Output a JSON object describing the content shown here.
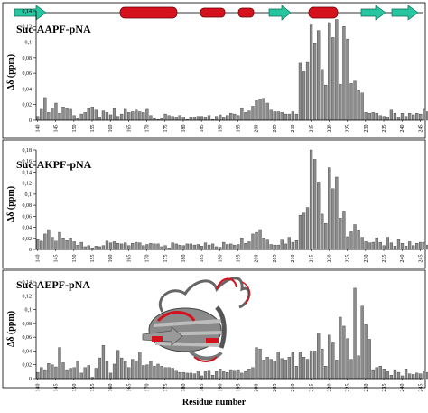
{
  "chart_data": [
    {
      "type": "bar",
      "title": "Suc-AAPF-pNA",
      "ylabel": "Δδ (ppm)",
      "xlabel": "",
      "ylim": [
        0,
        0.14
      ],
      "yticks": [
        "0",
        "0,02",
        "0,04",
        "0,06",
        "0,08",
        "0,1",
        "0,12",
        "0,14"
      ],
      "xlim": [
        140,
        245
      ],
      "xticks": [
        140,
        145,
        150,
        155,
        160,
        165,
        170,
        175,
        180,
        185,
        190,
        195,
        200,
        205,
        210,
        215,
        220,
        225,
        230,
        235,
        240,
        245
      ],
      "series": [
        {
          "x_start": 140,
          "values": [
            0.005,
            0.014,
            0.029,
            0.01,
            0.016,
            0.022,
            0.009,
            0.017,
            0.015,
            0.014,
            0.006,
            0.002,
            0.008,
            0.01,
            0.015,
            0.017,
            0.013,
            0.003,
            0.012,
            0.01,
            0.007,
            0.015,
            0.005,
            0.008,
            0.014,
            0.01,
            0.011,
            0.013,
            0.011,
            0.01,
            0.014,
            0.006,
            0.002,
            0.001,
            0.002,
            0.008,
            0.006,
            0.005,
            0.004,
            0.006,
            0.004,
            0.001,
            0.003,
            0.004,
            0.005,
            0.005,
            0.004,
            0.006,
            0.001,
            0.005,
            0.007,
            0.003,
            0.006,
            0.009,
            0.008,
            0.006,
            0.015,
            0.01,
            0.012,
            0.018,
            0.025,
            0.027,
            0.028,
            0.022,
            0.013,
            0.011,
            0.011,
            0.01,
            0.008,
            0.008,
            0.011,
            0.008,
            0.073,
            0.062,
            0.074,
            0.122,
            0.098,
            0.115,
            0.065,
            0.045,
            0.125,
            0.106,
            0.129,
            0.046,
            0.12,
            0.104,
            0.047,
            0.05,
            0.038,
            0.035,
            0.01,
            0.009,
            0.01,
            0.009,
            0.006,
            0.005,
            0.004,
            0.013,
            0.009,
            0.004,
            0.009,
            0.005,
            0.009,
            0.007,
            0.009,
            0.008,
            0.014,
            0.011,
            0.01,
            0.006,
            0.012,
            0.008,
            0.01,
            0.007,
            0.008,
            0.007,
            0.012,
            0.006,
            0.011,
            0.007,
            0.01,
            0.006,
            0.008,
            0.01,
            0.005,
            0.007,
            0.094,
            0.072,
            0.013,
            0.01,
            0.028,
            0.02,
            0.015,
            0.02,
            0.012,
            0.024,
            0.018,
            0.016,
            0.018,
            0.01,
            0.012,
            0.02
          ]
        }
      ]
    },
    {
      "type": "bar",
      "title": "Suc-AKPF-pNA",
      "ylabel": "Δδ (ppm)",
      "xlabel": "",
      "ylim": [
        0,
        0.18
      ],
      "yticks": [
        "0",
        "0,02",
        "0,04",
        "0,06",
        "0,08",
        "0,1",
        "0,12",
        "0,14",
        "0,16",
        "0,18"
      ],
      "xlim": [
        140,
        245
      ],
      "xticks": [
        140,
        145,
        150,
        155,
        160,
        165,
        170,
        175,
        180,
        185,
        190,
        195,
        200,
        205,
        210,
        215,
        220,
        225,
        230,
        235,
        240,
        245
      ],
      "series": [
        {
          "x_start": 140,
          "values": [
            0.018,
            0.015,
            0.028,
            0.036,
            0.022,
            0.015,
            0.031,
            0.021,
            0.016,
            0.021,
            0.014,
            0.008,
            0.013,
            0.005,
            0.007,
            0.003,
            0.006,
            0.005,
            0.007,
            0.015,
            0.012,
            0.014,
            0.011,
            0.01,
            0.012,
            0.007,
            0.011,
            0.013,
            0.012,
            0.007,
            0.009,
            0.011,
            0.01,
            0.01,
            0.005,
            0.007,
            0.003,
            0.012,
            0.01,
            0.008,
            0.007,
            0.01,
            0.01,
            0.008,
            0.009,
            0.006,
            0.012,
            0.008,
            0.01,
            0.005,
            0.004,
            0.013,
            0.009,
            0.01,
            0.008,
            0.009,
            0.021,
            0.011,
            0.014,
            0.028,
            0.031,
            0.036,
            0.021,
            0.017,
            0.009,
            0.008,
            0.008,
            0.017,
            0.01,
            0.022,
            0.013,
            0.016,
            0.062,
            0.066,
            0.076,
            0.18,
            0.163,
            0.122,
            0.064,
            0.047,
            0.148,
            0.11,
            0.131,
            0.057,
            0.068,
            0.023,
            0.032,
            0.045,
            0.034,
            0.022,
            0.014,
            0.012,
            0.013,
            0.021,
            0.013,
            0.007,
            0.022,
            0.012,
            0.006,
            0.018,
            0.011,
            0.006,
            0.014,
            0.007,
            0.011,
            0.013,
            0.013,
            0.008,
            0.012,
            0.014,
            0.011,
            0.016,
            0.006,
            0.012,
            0.018,
            0.016,
            0.014,
            0.014,
            0.02,
            0.017,
            0.01,
            0.02,
            0.003,
            0.011,
            0.01,
            0.012,
            0.158,
            0.054,
            0.015,
            0.02,
            0.011,
            0.008,
            0.02,
            0.026,
            0.012,
            0.017,
            0.008,
            0.012,
            0.01,
            0.018,
            0.014,
            0.012
          ]
        }
      ]
    },
    {
      "type": "bar",
      "title": "Suc-AEPF-pNA",
      "ylabel": "Δδ (ppm)",
      "xlabel": "Residue number",
      "ylim": [
        0,
        0.14
      ],
      "yticks": [
        "0",
        "0,02",
        "0,04",
        "0,06",
        "0,08",
        "0,1",
        "0,12",
        "0,14"
      ],
      "xlim": [
        140,
        245
      ],
      "xticks": [
        140,
        145,
        150,
        155,
        160,
        165,
        170,
        175,
        180,
        185,
        190,
        195,
        200,
        205,
        210,
        215,
        220,
        225,
        230,
        235,
        240,
        245
      ],
      "series": [
        {
          "x_start": 140,
          "values": [
            0.009,
            0.016,
            0.013,
            0.022,
            0.02,
            0.017,
            0.045,
            0.023,
            0.013,
            0.015,
            0.016,
            0.025,
            0.008,
            0.016,
            0.019,
            0.002,
            0.015,
            0.03,
            0.048,
            0.025,
            0.008,
            0.021,
            0.041,
            0.03,
            0.025,
            0.016,
            0.028,
            0.026,
            0.039,
            0.019,
            0.02,
            0.025,
            0.018,
            0.021,
            0.018,
            0.016,
            0.016,
            0.015,
            0.012,
            0.009,
            0.009,
            0.008,
            0.008,
            0.007,
            0.011,
            0.004,
            0.01,
            0.012,
            0.005,
            0.01,
            0.014,
            0.01,
            0.009,
            0.013,
            0.012,
            0.013,
            0.008,
            0.01,
            0.014,
            0.016,
            0.045,
            0.043,
            0.027,
            0.031,
            0.028,
            0.025,
            0.039,
            0.029,
            0.027,
            0.031,
            0.039,
            0.018,
            0.039,
            0.031,
            0.028,
            0.04,
            0.04,
            0.066,
            0.043,
            0.018,
            0.063,
            0.053,
            0.027,
            0.089,
            0.076,
            0.058,
            0.028,
            0.131,
            0.033,
            0.105,
            0.078,
            0.057,
            0.013,
            0.016,
            0.018,
            0.014,
            0.01,
            0.005,
            0.013,
            0.009,
            0.004,
            0.014,
            0.007,
            0.006,
            0.008,
            0.007,
            0.011,
            0.009,
            0.006,
            0.01,
            0.011,
            0.005,
            0.012,
            0.009,
            0.008,
            0.007,
            0.011,
            0.005,
            0.011,
            0.009,
            0.014,
            0.005,
            0.008,
            0.012,
            0.01,
            0.006,
            0.044,
            0.039,
            0.022,
            0.014,
            0.023,
            0.028,
            0.02,
            0.016,
            0.02,
            0.014,
            0.012,
            0.013,
            0.008,
            0.01,
            0.011,
            0.013
          ]
        }
      ]
    }
  ]
}
